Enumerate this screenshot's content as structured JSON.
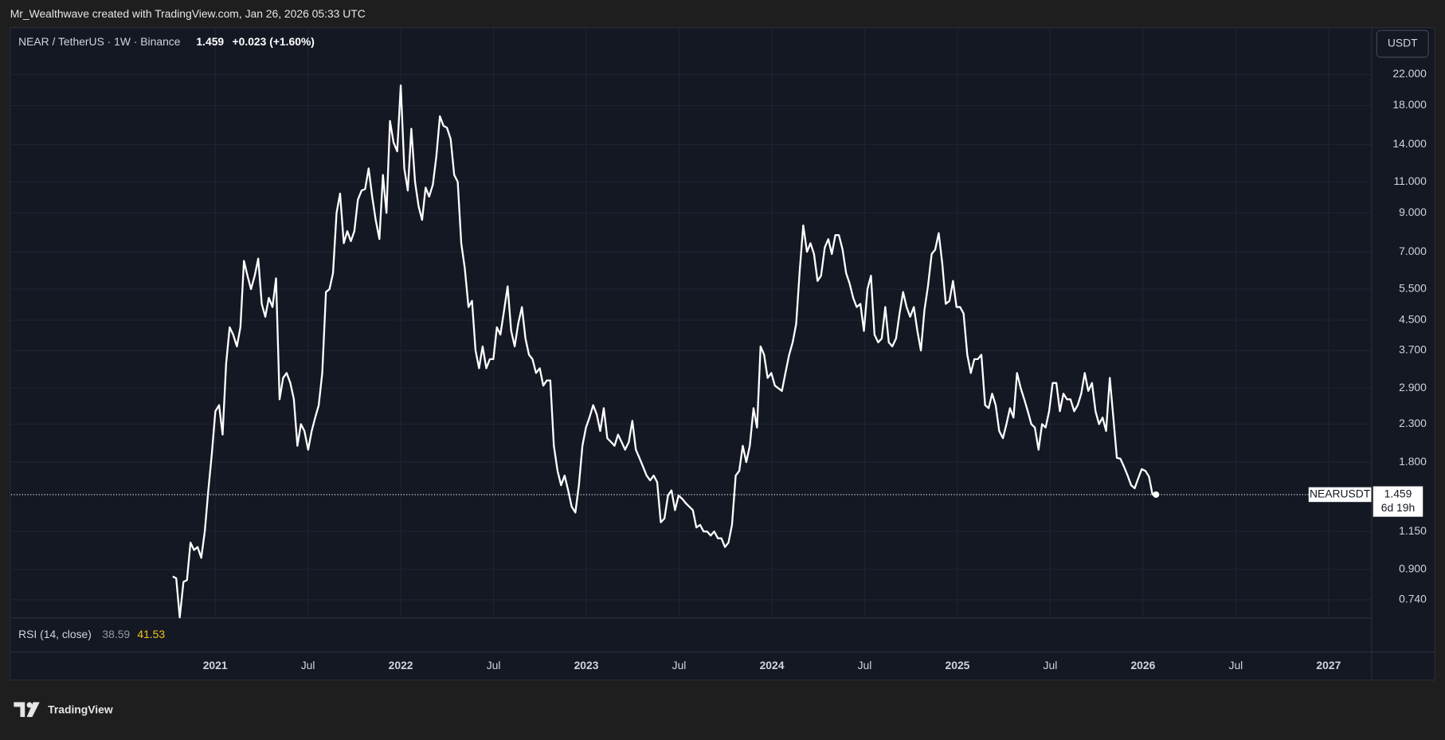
{
  "top_bar": "Mr_Wealthwave created with TradingView.com, Jan 26, 2026 05:33 UTC",
  "header": {
    "symbol": "NEAR / TetherUS · 1W · Binance",
    "price": "1.459",
    "change": "+0.023 (+1.60%)"
  },
  "currency_button": "USDT",
  "price_tag": {
    "symbol": "NEARUSDT",
    "price": "1.459",
    "countdown": "6d 19h"
  },
  "rsi": {
    "label": "RSI (14, close)",
    "value_a": "38.59",
    "value_b": "41.53"
  },
  "footer": {
    "brand": "TradingView"
  },
  "chart_data": {
    "type": "line",
    "log_scale": true,
    "grid": true,
    "xlim": [
      2019.9,
      2027.23
    ],
    "ylim": [
      0.66,
      29.6
    ],
    "xticks": [
      {
        "value": 2021,
        "label": "2021"
      },
      {
        "value": 2021.5,
        "label": "Jul"
      },
      {
        "value": 2022,
        "label": "2022"
      },
      {
        "value": 2022.5,
        "label": "Jul"
      },
      {
        "value": 2023,
        "label": "2023"
      },
      {
        "value": 2023.5,
        "label": "Jul"
      },
      {
        "value": 2024,
        "label": "2024"
      },
      {
        "value": 2024.5,
        "label": "Jul"
      },
      {
        "value": 2025,
        "label": "2025"
      },
      {
        "value": 2025.5,
        "label": "Jul"
      },
      {
        "value": 2026,
        "label": "2026"
      },
      {
        "value": 2026.5,
        "label": "Jul"
      },
      {
        "value": 2027,
        "label": "2027"
      }
    ],
    "yticks": [
      {
        "value": 0.74,
        "label": "0.740"
      },
      {
        "value": 0.9,
        "label": "0.900"
      },
      {
        "value": 1.15,
        "label": "1.150"
      },
      {
        "value": 1.8,
        "label": "1.800"
      },
      {
        "value": 2.3,
        "label": "2.300"
      },
      {
        "value": 2.9,
        "label": "2.900"
      },
      {
        "value": 3.7,
        "label": "3.700"
      },
      {
        "value": 4.5,
        "label": "4.500"
      },
      {
        "value": 5.5,
        "label": "5.500"
      },
      {
        "value": 7,
        "label": "7.000"
      },
      {
        "value": 9,
        "label": "9.000"
      },
      {
        "value": 11,
        "label": "11.000"
      },
      {
        "value": 14,
        "label": "14.000"
      },
      {
        "value": 18,
        "label": "18.000"
      },
      {
        "value": 22,
        "label": "22.000"
      }
    ],
    "x": [
      2020.771,
      2020.79,
      2020.809,
      2020.829,
      2020.848,
      2020.867,
      2020.886,
      2020.905,
      2020.925,
      2020.944,
      2020.963,
      2020.982,
      2021.001,
      2021.021,
      2021.04,
      2021.059,
      2021.078,
      2021.097,
      2021.117,
      2021.136,
      2021.155,
      2021.174,
      2021.193,
      2021.213,
      2021.232,
      2021.251,
      2021.27,
      2021.289,
      2021.309,
      2021.328,
      2021.347,
      2021.366,
      2021.385,
      2021.405,
      2021.424,
      2021.443,
      2021.462,
      2021.481,
      2021.501,
      2021.52,
      2021.539,
      2021.558,
      2021.577,
      2021.597,
      2021.616,
      2021.635,
      2021.654,
      2021.673,
      2021.693,
      2021.712,
      2021.731,
      2021.75,
      2021.769,
      2021.789,
      2021.808,
      2021.827,
      2021.846,
      2021.865,
      2021.885,
      2021.904,
      2021.923,
      2021.942,
      2021.961,
      2021.981,
      2022.0,
      2022.019,
      2022.038,
      2022.057,
      2022.077,
      2022.096,
      2022.115,
      2022.134,
      2022.153,
      2022.173,
      2022.192,
      2022.211,
      2022.23,
      2022.249,
      2022.269,
      2022.288,
      2022.307,
      2022.326,
      2022.345,
      2022.365,
      2022.384,
      2022.403,
      2022.422,
      2022.441,
      2022.461,
      2022.48,
      2022.499,
      2022.518,
      2022.537,
      2022.557,
      2022.576,
      2022.595,
      2022.614,
      2022.633,
      2022.653,
      2022.672,
      2022.691,
      2022.71,
      2022.729,
      2022.749,
      2022.768,
      2022.787,
      2022.806,
      2022.825,
      2022.845,
      2022.864,
      2022.883,
      2022.902,
      2022.921,
      2022.941,
      2022.96,
      2022.979,
      2022.998,
      2023.017,
      2023.037,
      2023.056,
      2023.075,
      2023.094,
      2023.113,
      2023.133,
      2023.152,
      2023.171,
      2023.19,
      2023.209,
      2023.229,
      2023.248,
      2023.267,
      2023.286,
      2023.305,
      2023.325,
      2023.344,
      2023.363,
      2023.382,
      2023.401,
      2023.421,
      2023.44,
      2023.459,
      2023.478,
      2023.497,
      2023.517,
      2023.536,
      2023.555,
      2023.574,
      2023.593,
      2023.613,
      2023.632,
      2023.651,
      2023.67,
      2023.689,
      2023.709,
      2023.728,
      2023.747,
      2023.766,
      2023.785,
      2023.805,
      2023.824,
      2023.843,
      2023.862,
      2023.881,
      2023.901,
      2023.92,
      2023.939,
      2023.958,
      2023.977,
      2023.997,
      2024.016,
      2024.035,
      2024.054,
      2024.073,
      2024.093,
      2024.112,
      2024.131,
      2024.15,
      2024.169,
      2024.189,
      2024.208,
      2024.227,
      2024.246,
      2024.265,
      2024.285,
      2024.304,
      2024.323,
      2024.342,
      2024.361,
      2024.381,
      2024.4,
      2024.419,
      2024.438,
      2024.457,
      2024.477,
      2024.496,
      2024.515,
      2024.534,
      2024.553,
      2024.573,
      2024.592,
      2024.611,
      2024.63,
      2024.649,
      2024.669,
      2024.688,
      2024.707,
      2024.726,
      2024.745,
      2024.765,
      2024.784,
      2024.803,
      2024.822,
      2024.841,
      2024.861,
      2024.88,
      2024.899,
      2024.918,
      2024.937,
      2024.957,
      2024.976,
      2024.995,
      2025.014,
      2025.033,
      2025.053,
      2025.072,
      2025.091,
      2025.11,
      2025.129,
      2025.149,
      2025.168,
      2025.187,
      2025.206,
      2025.225,
      2025.245,
      2025.264,
      2025.283,
      2025.302,
      2025.321,
      2025.341,
      2025.36,
      2025.379,
      2025.398,
      2025.417,
      2025.437,
      2025.456,
      2025.475,
      2025.494,
      2025.513,
      2025.533,
      2025.552,
      2025.571,
      2025.59,
      2025.609,
      2025.629,
      2025.648,
      2025.667,
      2025.686,
      2025.705,
      2025.725,
      2025.744,
      2025.763,
      2025.782,
      2025.801,
      2025.821,
      2025.84,
      2025.859,
      2025.878,
      2025.897,
      2025.917,
      2025.936,
      2025.955,
      2025.974,
      2025.993,
      2026.013,
      2026.032,
      2026.051,
      2026.07
    ],
    "series": [
      {
        "name": "NEARUSDT",
        "color": "#ffffff",
        "values": [
          0.86,
          0.85,
          0.66,
          0.83,
          0.84,
          1.07,
          1.02,
          1.04,
          0.97,
          1.15,
          1.5,
          1.9,
          2.5,
          2.6,
          2.15,
          3.4,
          4.3,
          4.1,
          3.8,
          4.3,
          6.6,
          6.0,
          5.5,
          6.0,
          6.7,
          5.0,
          4.6,
          5.2,
          4.9,
          5.9,
          2.7,
          3.1,
          3.2,
          3.0,
          2.7,
          2.0,
          2.3,
          2.2,
          1.95,
          2.2,
          2.4,
          2.6,
          3.2,
          5.4,
          5.5,
          6.1,
          9.0,
          10.2,
          7.4,
          8.0,
          7.5,
          8.0,
          9.8,
          10.4,
          10.5,
          12.0,
          10.0,
          8.6,
          7.6,
          11.5,
          9.0,
          16.3,
          14.2,
          13.4,
          20.5,
          12.0,
          10.4,
          15.5,
          11.0,
          9.4,
          8.6,
          10.6,
          10.0,
          10.8,
          13.0,
          16.8,
          15.8,
          15.6,
          14.5,
          11.5,
          11.0,
          7.4,
          6.3,
          4.9,
          5.1,
          3.7,
          3.3,
          3.8,
          3.3,
          3.5,
          3.5,
          4.3,
          4.1,
          4.8,
          5.6,
          4.2,
          3.8,
          4.4,
          4.9,
          4.0,
          3.6,
          3.5,
          3.2,
          3.3,
          2.95,
          3.05,
          3.05,
          2.0,
          1.7,
          1.55,
          1.65,
          1.5,
          1.35,
          1.3,
          1.55,
          2.0,
          2.25,
          2.4,
          2.6,
          2.45,
          2.2,
          2.55,
          2.1,
          2.05,
          2.0,
          2.15,
          2.05,
          1.95,
          2.05,
          2.35,
          1.95,
          1.85,
          1.75,
          1.65,
          1.6,
          1.65,
          1.58,
          1.22,
          1.25,
          1.45,
          1.5,
          1.32,
          1.45,
          1.42,
          1.38,
          1.35,
          1.32,
          1.18,
          1.2,
          1.15,
          1.15,
          1.12,
          1.15,
          1.1,
          1.1,
          1.04,
          1.07,
          1.2,
          1.65,
          1.7,
          2.0,
          1.8,
          2.0,
          2.55,
          2.25,
          3.8,
          3.6,
          3.1,
          3.2,
          2.95,
          2.9,
          2.85,
          3.2,
          3.6,
          3.9,
          4.4,
          6.2,
          8.3,
          7.0,
          7.4,
          6.9,
          5.8,
          6.0,
          7.2,
          7.6,
          6.9,
          7.8,
          7.8,
          7.1,
          6.1,
          5.7,
          5.2,
          4.9,
          5.0,
          4.2,
          5.5,
          6.0,
          4.1,
          3.9,
          4.0,
          4.9,
          3.9,
          3.8,
          4.0,
          4.7,
          5.4,
          4.9,
          4.6,
          4.9,
          4.2,
          3.7,
          4.8,
          5.6,
          6.9,
          7.1,
          7.9,
          6.5,
          5.0,
          5.1,
          5.8,
          4.9,
          4.9,
          4.7,
          3.6,
          3.2,
          3.5,
          3.5,
          3.6,
          2.6,
          2.55,
          2.8,
          2.6,
          2.2,
          2.1,
          2.3,
          2.55,
          2.4,
          3.2,
          2.9,
          2.7,
          2.5,
          2.3,
          2.25,
          1.95,
          2.3,
          2.25,
          2.5,
          3.0,
          3.0,
          2.5,
          2.8,
          2.7,
          2.7,
          2.5,
          2.6,
          2.8,
          3.2,
          2.85,
          3.0,
          2.5,
          2.3,
          2.4,
          2.2,
          3.1,
          2.4,
          1.85,
          1.84,
          1.75,
          1.65,
          1.55,
          1.52,
          1.62,
          1.72,
          1.7,
          1.64,
          1.46,
          1.459
        ]
      }
    ]
  }
}
